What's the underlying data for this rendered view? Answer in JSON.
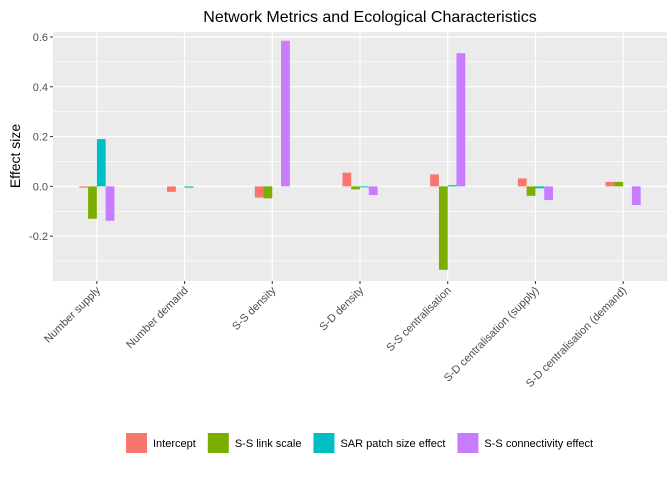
{
  "chart_data": {
    "type": "bar",
    "title": "Network Metrics and Ecological Characteristics",
    "xlabel": "",
    "ylabel": "Effect size",
    "ylim": [
      -0.38,
      0.62
    ],
    "yticks": [
      -0.2,
      0.0,
      0.2,
      0.4,
      0.6
    ],
    "ytick_labels": [
      "-0.2",
      "0.0",
      "0.2",
      "0.4",
      "0.6"
    ],
    "grid": true,
    "legend_position": "bottom",
    "categories": [
      "Number supply",
      "Number demand",
      "S-S density",
      "S-D density",
      "S-S centralisation",
      "S-D centralisation (supply)",
      "S-D centralisation (demand)"
    ],
    "series": [
      {
        "name": "Intercept",
        "color": "#F8766D",
        "values": [
          -0.005,
          -0.022,
          -0.045,
          0.055,
          0.048,
          0.032,
          0.018
        ]
      },
      {
        "name": "S-S link scale",
        "color": "#7CAE00",
        "values": [
          -0.13,
          0.0,
          -0.048,
          -0.012,
          -0.335,
          -0.038,
          0.018
        ]
      },
      {
        "name": "SAR patch size effect",
        "color": "#00BFC4",
        "values": [
          0.19,
          -0.005,
          0.0,
          -0.004,
          0.005,
          -0.008,
          0.0
        ]
      },
      {
        "name": "S-S connectivity effect",
        "color": "#C77CFF",
        "values": [
          -0.138,
          0.0,
          0.585,
          -0.035,
          0.535,
          -0.055,
          -0.075
        ]
      }
    ]
  }
}
